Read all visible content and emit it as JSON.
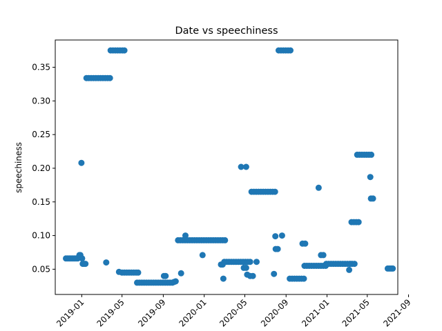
{
  "chart_data": {
    "type": "scatter",
    "title": "Date vs speechiness",
    "xlabel": "",
    "ylabel": "speechiness",
    "x_type": "date",
    "xlim": [
      "2018-10-14",
      "2021-07-31"
    ],
    "ylim": [
      0.0125,
      0.3905
    ],
    "x_ticks": [
      "2019-01",
      "2019-05",
      "2019-09",
      "2020-01",
      "2020-05",
      "2020-09",
      "2021-01",
      "2021-05",
      "2021-09"
    ],
    "y_ticks": [
      "0.05",
      "0.10",
      "0.15",
      "0.20",
      "0.25",
      "0.30",
      "0.35"
    ],
    "grid": false,
    "color": "#1f77b4",
    "series": [
      {
        "points": [
          [
            "2018-11-15",
            0.066
          ],
          [
            "2018-11-20",
            0.066
          ],
          [
            "2018-11-25",
            0.066
          ],
          [
            "2018-11-30",
            0.066
          ],
          [
            "2018-12-05",
            0.066
          ],
          [
            "2018-12-10",
            0.066
          ],
          [
            "2018-12-15",
            0.066
          ],
          [
            "2018-12-20",
            0.066
          ],
          [
            "2018-12-25",
            0.071
          ],
          [
            "2018-12-28",
            0.071
          ],
          [
            "2018-12-31",
            0.208
          ],
          [
            "2019-01-02",
            0.066
          ],
          [
            "2019-01-04",
            0.058
          ],
          [
            "2019-01-08",
            0.058
          ],
          [
            "2019-01-12",
            0.058
          ],
          [
            "2019-01-15",
            0.334
          ],
          [
            "2019-01-22",
            0.334
          ],
          [
            "2019-01-29",
            0.334
          ],
          [
            "2019-02-05",
            0.334
          ],
          [
            "2019-02-12",
            0.334
          ],
          [
            "2019-02-19",
            0.334
          ],
          [
            "2019-02-26",
            0.334
          ],
          [
            "2019-03-05",
            0.334
          ],
          [
            "2019-03-12",
            0.334
          ],
          [
            "2019-03-19",
            0.334
          ],
          [
            "2019-03-26",
            0.334
          ],
          [
            "2019-03-15",
            0.06
          ],
          [
            "2019-03-28",
            0.375
          ],
          [
            "2019-04-04",
            0.375
          ],
          [
            "2019-04-11",
            0.375
          ],
          [
            "2019-04-18",
            0.375
          ],
          [
            "2019-04-25",
            0.375
          ],
          [
            "2019-05-02",
            0.375
          ],
          [
            "2019-05-08",
            0.375
          ],
          [
            "2019-04-22",
            0.046
          ],
          [
            "2019-05-01",
            0.045
          ],
          [
            "2019-05-08",
            0.045
          ],
          [
            "2019-05-15",
            0.045
          ],
          [
            "2019-05-22",
            0.045
          ],
          [
            "2019-05-29",
            0.045
          ],
          [
            "2019-06-05",
            0.045
          ],
          [
            "2019-06-12",
            0.045
          ],
          [
            "2019-06-18",
            0.045
          ],
          [
            "2019-06-15",
            0.03
          ],
          [
            "2019-06-22",
            0.03
          ],
          [
            "2019-06-29",
            0.03
          ],
          [
            "2019-07-06",
            0.03
          ],
          [
            "2019-07-13",
            0.03
          ],
          [
            "2019-07-20",
            0.03
          ],
          [
            "2019-07-27",
            0.03
          ],
          [
            "2019-08-03",
            0.03
          ],
          [
            "2019-08-10",
            0.03
          ],
          [
            "2019-08-17",
            0.03
          ],
          [
            "2019-08-24",
            0.03
          ],
          [
            "2019-08-31",
            0.03
          ],
          [
            "2019-09-07",
            0.03
          ],
          [
            "2019-09-14",
            0.03
          ],
          [
            "2019-09-21",
            0.03
          ],
          [
            "2019-09-28",
            0.03
          ],
          [
            "2019-10-03",
            0.031
          ],
          [
            "2019-10-08",
            0.032
          ],
          [
            "2019-09-03",
            0.04
          ],
          [
            "2019-09-08",
            0.04
          ],
          [
            "2019-10-15",
            0.093
          ],
          [
            "2019-10-22",
            0.093
          ],
          [
            "2019-10-29",
            0.093
          ],
          [
            "2019-11-05",
            0.093
          ],
          [
            "2019-11-12",
            0.093
          ],
          [
            "2019-11-19",
            0.093
          ],
          [
            "2019-11-26",
            0.093
          ],
          [
            "2019-12-03",
            0.093
          ],
          [
            "2019-12-10",
            0.093
          ],
          [
            "2019-12-17",
            0.093
          ],
          [
            "2019-12-24",
            0.093
          ],
          [
            "2019-12-31",
            0.093
          ],
          [
            "2020-01-07",
            0.093
          ],
          [
            "2020-01-14",
            0.093
          ],
          [
            "2020-01-21",
            0.093
          ],
          [
            "2020-01-28",
            0.093
          ],
          [
            "2020-02-04",
            0.093
          ],
          [
            "2020-02-11",
            0.093
          ],
          [
            "2020-02-18",
            0.093
          ],
          [
            "2020-02-25",
            0.093
          ],
          [
            "2020-03-03",
            0.093
          ],
          [
            "2019-11-06",
            0.1
          ],
          [
            "2019-10-24",
            0.044
          ],
          [
            "2019-12-27",
            0.071
          ],
          [
            "2020-02-20",
            0.057
          ],
          [
            "2020-02-25",
            0.057
          ],
          [
            "2020-03-01",
            0.061
          ],
          [
            "2020-03-08",
            0.061
          ],
          [
            "2020-03-15",
            0.061
          ],
          [
            "2020-03-22",
            0.061
          ],
          [
            "2020-03-29",
            0.061
          ],
          [
            "2020-04-05",
            0.061
          ],
          [
            "2020-04-12",
            0.061
          ],
          [
            "2020-04-19",
            0.061
          ],
          [
            "2020-04-26",
            0.061
          ],
          [
            "2020-05-03",
            0.061
          ],
          [
            "2020-05-10",
            0.061
          ],
          [
            "2020-05-17",
            0.061
          ],
          [
            "2020-06-05",
            0.061
          ],
          [
            "2020-02-27",
            0.036
          ],
          [
            "2020-04-20",
            0.202
          ],
          [
            "2020-05-05",
            0.202
          ],
          [
            "2020-04-28",
            0.052
          ],
          [
            "2020-05-05",
            0.052
          ],
          [
            "2020-05-08",
            0.042
          ],
          [
            "2020-05-17",
            0.04
          ],
          [
            "2020-05-25",
            0.04
          ],
          [
            "2020-05-21",
            0.165
          ],
          [
            "2020-05-28",
            0.165
          ],
          [
            "2020-06-04",
            0.165
          ],
          [
            "2020-06-11",
            0.165
          ],
          [
            "2020-06-18",
            0.165
          ],
          [
            "2020-06-25",
            0.165
          ],
          [
            "2020-07-02",
            0.165
          ],
          [
            "2020-07-09",
            0.165
          ],
          [
            "2020-07-16",
            0.165
          ],
          [
            "2020-07-23",
            0.165
          ],
          [
            "2020-07-30",
            0.165
          ],
          [
            "2020-07-27",
            0.043
          ],
          [
            "2020-07-31",
            0.099
          ],
          [
            "2020-08-20",
            0.1
          ],
          [
            "2020-08-01",
            0.08
          ],
          [
            "2020-08-07",
            0.08
          ],
          [
            "2020-08-10",
            0.375
          ],
          [
            "2020-08-17",
            0.375
          ],
          [
            "2020-08-24",
            0.375
          ],
          [
            "2020-08-31",
            0.375
          ],
          [
            "2020-09-07",
            0.375
          ],
          [
            "2020-09-14",
            0.375
          ],
          [
            "2020-09-12",
            0.036
          ],
          [
            "2020-09-19",
            0.036
          ],
          [
            "2020-09-26",
            0.036
          ],
          [
            "2020-10-03",
            0.036
          ],
          [
            "2020-10-10",
            0.036
          ],
          [
            "2020-10-17",
            0.036
          ],
          [
            "2020-10-24",
            0.036
          ],
          [
            "2020-10-20",
            0.088
          ],
          [
            "2020-10-28",
            0.088
          ],
          [
            "2020-10-26",
            0.055
          ],
          [
            "2020-11-02",
            0.055
          ],
          [
            "2020-11-09",
            0.055
          ],
          [
            "2020-11-16",
            0.055
          ],
          [
            "2020-11-23",
            0.055
          ],
          [
            "2020-11-30",
            0.055
          ],
          [
            "2020-12-07",
            0.055
          ],
          [
            "2020-12-14",
            0.055
          ],
          [
            "2020-12-21",
            0.055
          ],
          [
            "2020-12-28",
            0.055
          ],
          [
            "2020-12-07",
            0.171
          ],
          [
            "2020-12-14",
            0.071
          ],
          [
            "2020-12-21",
            0.071
          ],
          [
            "2020-12-30",
            0.058
          ],
          [
            "2021-01-06",
            0.058
          ],
          [
            "2021-01-13",
            0.058
          ],
          [
            "2021-01-20",
            0.058
          ],
          [
            "2021-01-27",
            0.058
          ],
          [
            "2021-02-03",
            0.058
          ],
          [
            "2021-02-10",
            0.058
          ],
          [
            "2021-02-17",
            0.058
          ],
          [
            "2021-02-24",
            0.058
          ],
          [
            "2021-03-03",
            0.058
          ],
          [
            "2021-03-10",
            0.058
          ],
          [
            "2021-03-17",
            0.058
          ],
          [
            "2021-03-24",
            0.058
          ],
          [
            "2021-03-08",
            0.049
          ],
          [
            "2021-03-15",
            0.12
          ],
          [
            "2021-03-22",
            0.12
          ],
          [
            "2021-03-29",
            0.12
          ],
          [
            "2021-04-05",
            0.12
          ],
          [
            "2021-04-01",
            0.22
          ],
          [
            "2021-04-08",
            0.22
          ],
          [
            "2021-04-15",
            0.22
          ],
          [
            "2021-04-22",
            0.22
          ],
          [
            "2021-04-29",
            0.22
          ],
          [
            "2021-05-06",
            0.22
          ],
          [
            "2021-05-13",
            0.22
          ],
          [
            "2021-05-10",
            0.187
          ],
          [
            "2021-05-12",
            0.155
          ],
          [
            "2021-05-18",
            0.155
          ],
          [
            "2021-07-01",
            0.051
          ],
          [
            "2021-07-06",
            0.051
          ],
          [
            "2021-07-11",
            0.051
          ],
          [
            "2021-07-16",
            0.051
          ]
        ]
      }
    ]
  }
}
